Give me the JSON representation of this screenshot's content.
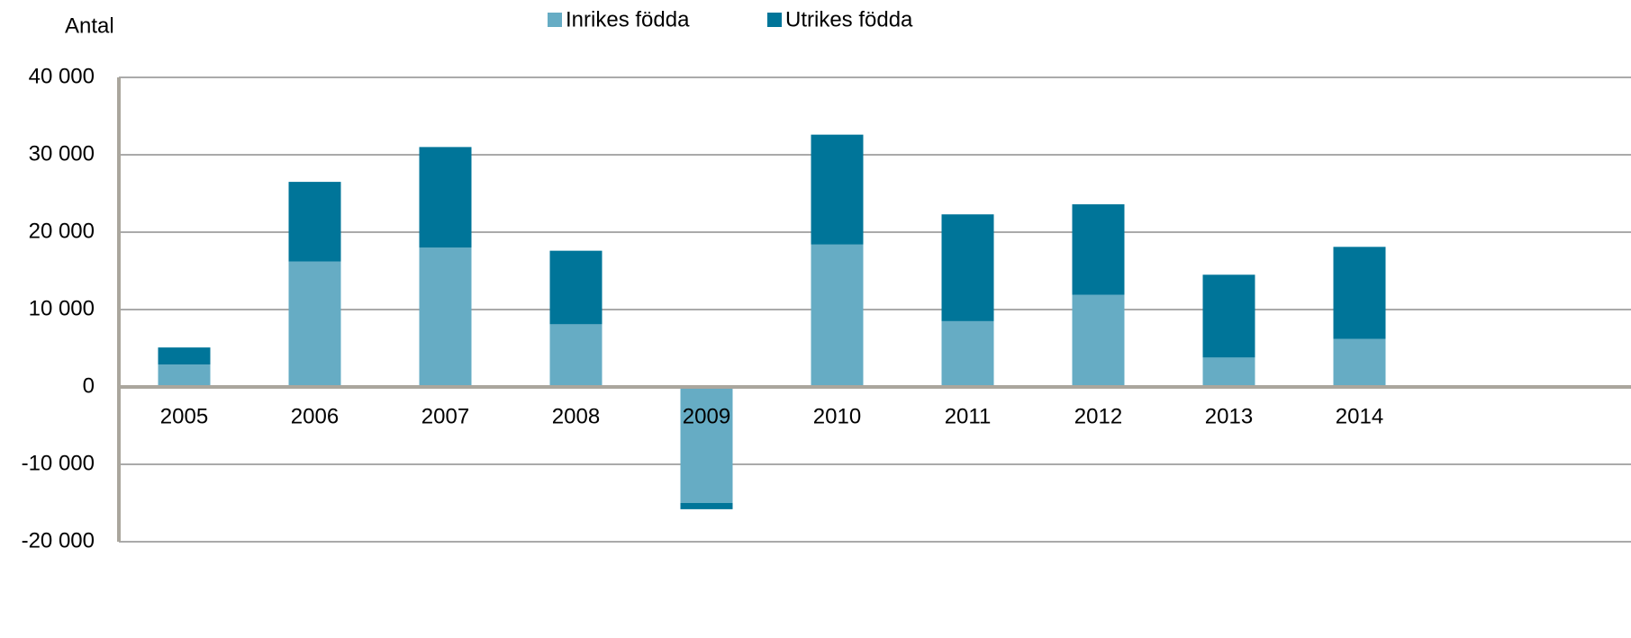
{
  "chart_data": {
    "type": "stacked_bar",
    "y_axis_label": "Antal",
    "categories": [
      "2005",
      "2006",
      "2007",
      "2008",
      "2009",
      "2010",
      "2011",
      "2012",
      "2013",
      "2014"
    ],
    "series": [
      {
        "name": "Inrikes födda",
        "color": "#66acc4",
        "values": [
          2900,
          16200,
          18000,
          8100,
          -15000,
          18400,
          8500,
          11900,
          3800,
          6200
        ]
      },
      {
        "name": "Utrikes födda",
        "color": "#007599",
        "values": [
          2200,
          10300,
          13000,
          9500,
          -800,
          14200,
          13800,
          11700,
          10700,
          11900
        ]
      }
    ],
    "ylim": [
      -20000,
      40000
    ],
    "yticks": [
      {
        "value": -20000,
        "label": "-20 000"
      },
      {
        "value": -10000,
        "label": "-10 000"
      },
      0,
      {
        "value": 10000,
        "label": "10 000"
      },
      {
        "value": 20000,
        "label": "20 000"
      },
      {
        "value": 30000,
        "label": "30 000"
      },
      {
        "value": 40000,
        "label": "40 000"
      }
    ],
    "grid": true,
    "legend": "top"
  }
}
